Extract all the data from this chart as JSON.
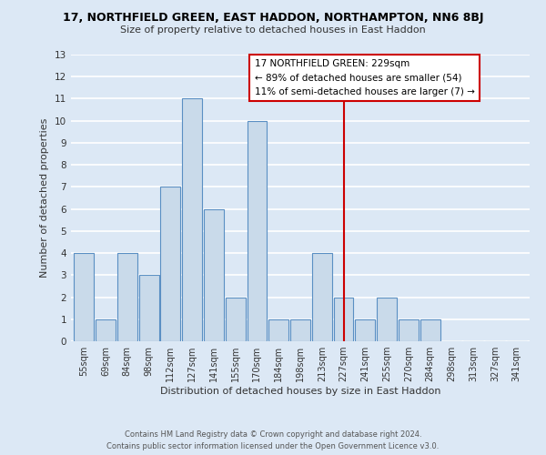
{
  "title": "17, NORTHFIELD GREEN, EAST HADDON, NORTHAMPTON, NN6 8BJ",
  "subtitle": "Size of property relative to detached houses in East Haddon",
  "xlabel": "Distribution of detached houses by size in East Haddon",
  "ylabel": "Number of detached properties",
  "bin_labels": [
    "55sqm",
    "69sqm",
    "84sqm",
    "98sqm",
    "112sqm",
    "127sqm",
    "141sqm",
    "155sqm",
    "170sqm",
    "184sqm",
    "198sqm",
    "213sqm",
    "227sqm",
    "241sqm",
    "255sqm",
    "270sqm",
    "284sqm",
    "298sqm",
    "313sqm",
    "327sqm",
    "341sqm"
  ],
  "bar_heights": [
    4,
    1,
    4,
    3,
    7,
    11,
    6,
    2,
    10,
    1,
    1,
    4,
    2,
    1,
    2,
    1,
    1,
    0,
    0,
    0,
    0
  ],
  "bar_color": "#c9daea",
  "bar_edge_color": "#5a8fc3",
  "reference_line_x": 12,
  "ylim": [
    0,
    13
  ],
  "yticks": [
    0,
    1,
    2,
    3,
    4,
    5,
    6,
    7,
    8,
    9,
    10,
    11,
    12,
    13
  ],
  "annotation_title": "17 NORTHFIELD GREEN: 229sqm",
  "annotation_line1": "← 89% of detached houses are smaller (54)",
  "annotation_line2": "11% of semi-detached houses are larger (7) →",
  "annotation_box_color": "#ffffff",
  "annotation_border_color": "#cc0000",
  "footnote1": "Contains HM Land Registry data © Crown copyright and database right 2024.",
  "footnote2": "Contains public sector information licensed under the Open Government Licence v3.0.",
  "bg_color": "#dce8f5",
  "plot_bg_color": "#dce8f5",
  "grid_color": "#ffffff",
  "reference_line_color": "#cc0000"
}
